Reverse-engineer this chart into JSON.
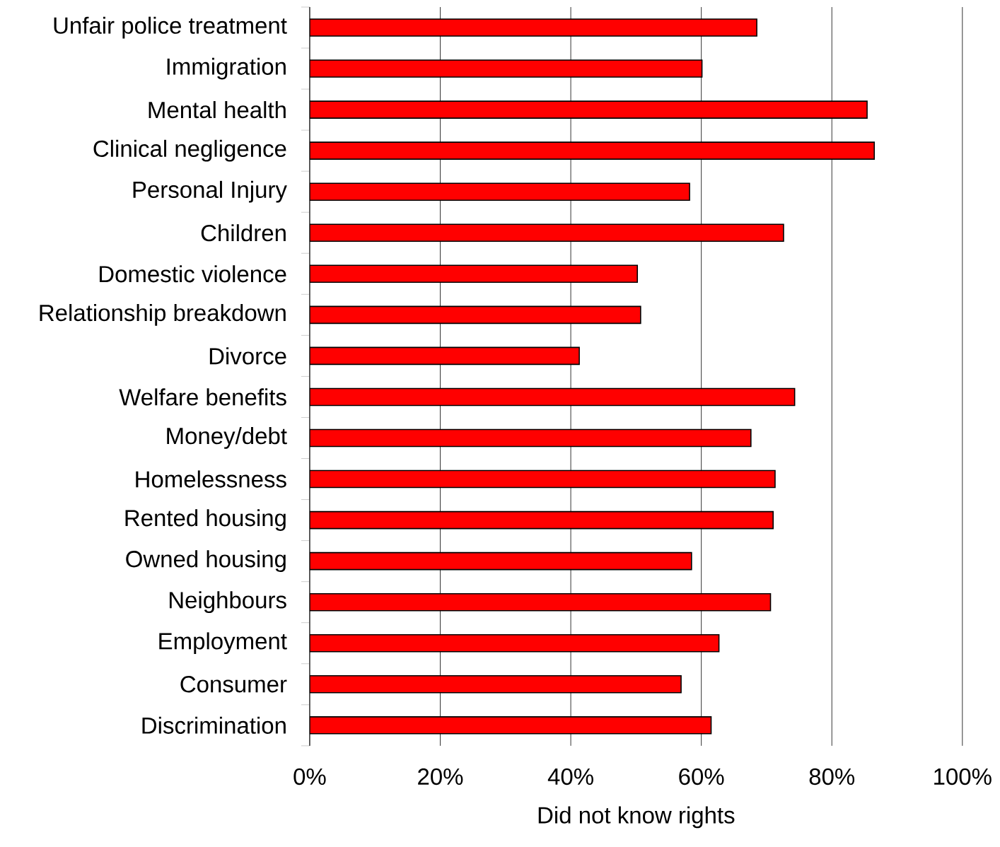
{
  "chart_data": {
    "type": "bar",
    "orientation": "horizontal",
    "xlabel": "Did not know rights",
    "categories": [
      "Unfair police treatment",
      "Immigration",
      "Mental health",
      "Clinical negligence",
      "Personal Injury",
      "Children",
      "Domestic violence",
      "Relationship breakdown",
      "Divorce",
      "Welfare benefits",
      "Money/debt",
      "Homelessness",
      "Rented housing",
      "Owned housing",
      "Neighbours",
      "Employment",
      "Consumer",
      "Discrimination"
    ],
    "values": [
      68.5,
      60.1,
      85.4,
      86.5,
      58.2,
      72.6,
      50.2,
      50.7,
      41.3,
      74.3,
      67.6,
      71.3,
      71.0,
      58.5,
      70.6,
      62.7,
      56.9,
      61.5
    ],
    "color": "#ff0000",
    "xlim": [
      0,
      100
    ],
    "xticks": [
      {
        "value": 0,
        "label": "0%"
      },
      {
        "value": 20,
        "label": "20%"
      },
      {
        "value": 40,
        "label": "40%"
      },
      {
        "value": 60,
        "label": "60%"
      },
      {
        "value": 80,
        "label": "80%"
      },
      {
        "value": 100,
        "label": "100%"
      }
    ],
    "grid": "x"
  }
}
